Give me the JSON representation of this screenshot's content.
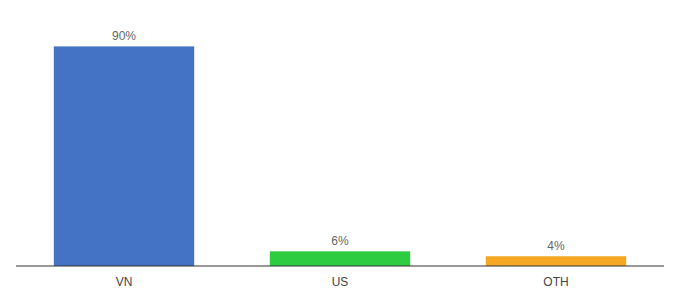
{
  "chart_data": {
    "type": "bar",
    "categories": [
      "VN",
      "US",
      "OTH"
    ],
    "values": [
      90,
      6,
      4
    ],
    "value_labels": [
      "90%",
      "6%",
      "4%"
    ],
    "colors": [
      "#4472c4",
      "#2ecc40",
      "#f5a623"
    ],
    "ylim": [
      0,
      100
    ],
    "data_labels": true,
    "tick_labels": "x"
  }
}
